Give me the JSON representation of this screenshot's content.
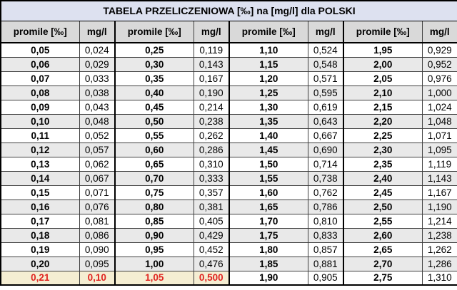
{
  "title": "TABELA PRZELICZENIOWA [‰] na [mg/l] dla POLSKI",
  "columns": [
    "promile [‰]",
    "mg/l",
    "promile [‰]",
    "mg/l",
    "promile [‰]",
    "mg/l",
    "promile [‰]",
    "mg/l"
  ],
  "rows": [
    [
      "0,05",
      "0,024",
      "0,25",
      "0,119",
      "1,10",
      "0,524",
      "1,95",
      "0,929"
    ],
    [
      "0,06",
      "0,029",
      "0,30",
      "0,143",
      "1,15",
      "0,548",
      "2,00",
      "0,952"
    ],
    [
      "0,07",
      "0,033",
      "0,35",
      "0,167",
      "1,20",
      "0,571",
      "2,05",
      "0,976"
    ],
    [
      "0,08",
      "0,038",
      "0,40",
      "0,190",
      "1,25",
      "0,595",
      "2,10",
      "1,000"
    ],
    [
      "0,09",
      "0,043",
      "0,45",
      "0,214",
      "1,30",
      "0,619",
      "2,15",
      "1,024"
    ],
    [
      "0,10",
      "0,048",
      "0,50",
      "0,238",
      "1,35",
      "0,643",
      "2,20",
      "1,048"
    ],
    [
      "0,11",
      "0,052",
      "0,55",
      "0,262",
      "1,40",
      "0,667",
      "2,25",
      "1,071"
    ],
    [
      "0,12",
      "0,057",
      "0,60",
      "0,286",
      "1,45",
      "0,690",
      "2,30",
      "1,095"
    ],
    [
      "0,13",
      "0,062",
      "0,65",
      "0,310",
      "1,50",
      "0,714",
      "2,35",
      "1,119"
    ],
    [
      "0,14",
      "0,067",
      "0,70",
      "0,333",
      "1,55",
      "0,738",
      "2,40",
      "1,143"
    ],
    [
      "0,15",
      "0,071",
      "0,75",
      "0,357",
      "1,60",
      "0,762",
      "2,45",
      "1,167"
    ],
    [
      "0,16",
      "0,076",
      "0,80",
      "0,381",
      "1,65",
      "0,786",
      "2,50",
      "1,190"
    ],
    [
      "0,17",
      "0,081",
      "0,85",
      "0,405",
      "1,70",
      "0,810",
      "2,55",
      "1,214"
    ],
    [
      "0,18",
      "0,086",
      "0,90",
      "0,429",
      "1,75",
      "0,833",
      "2,60",
      "1,238"
    ],
    [
      "0,19",
      "0,090",
      "0,95",
      "0,452",
      "1,80",
      "0,857",
      "2,65",
      "1,262"
    ],
    [
      "0,20",
      "0,095",
      "1,00",
      "0,476",
      "1,85",
      "0,881",
      "2,70",
      "1,286"
    ],
    [
      "0,21",
      "0,10",
      "1,05",
      "0,500",
      "1,90",
      "0,905",
      "2,75",
      "1,310"
    ]
  ],
  "highlight": {
    "row_index": 16,
    "cols": [
      0,
      1,
      2,
      3
    ]
  },
  "colors": {
    "title_bg": "#dde1f0",
    "header_bg": "#d9d9d9",
    "stripe_bg": "#e9e9e9",
    "highlight_bg": "#f5eed2",
    "highlight_text": "#e02420",
    "border": "#000000"
  }
}
